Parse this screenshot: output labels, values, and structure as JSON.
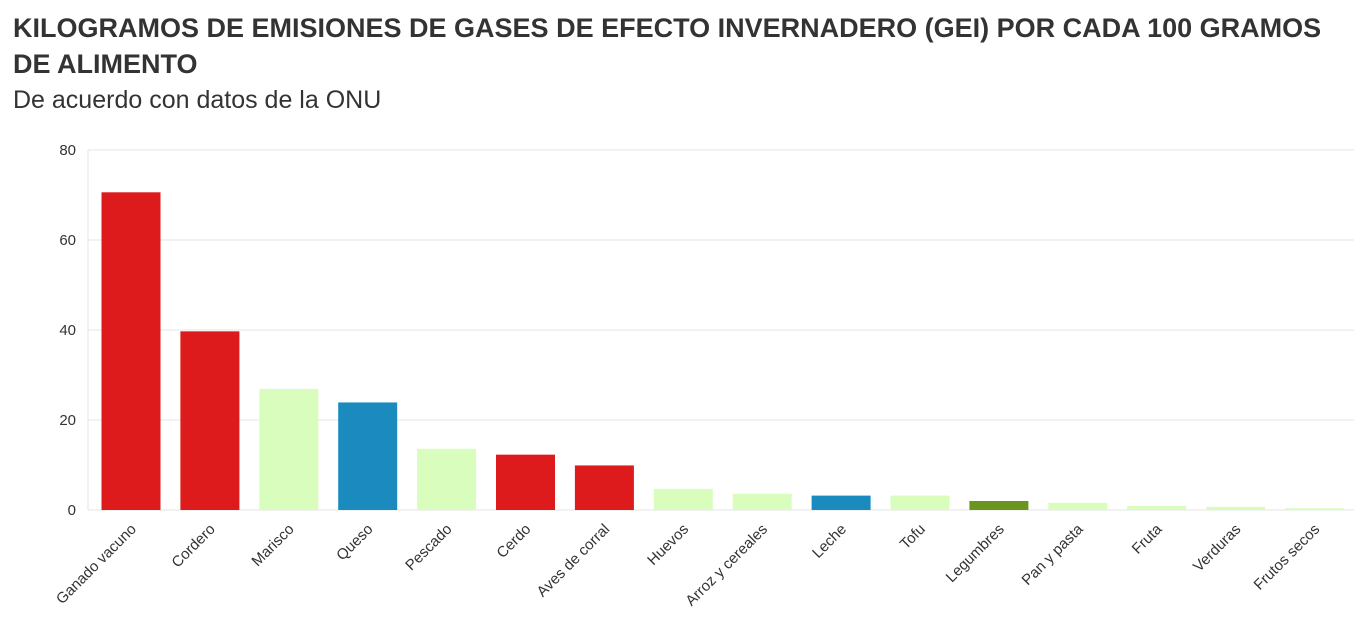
{
  "chart_data": {
    "type": "bar",
    "title": "KILOGRAMOS DE EMISIONES DE GASES DE EFECTO INVERNADERO (GEI) POR CADA 100 GRAMOS DE ALIMENTO",
    "subtitle": "De acuerdo con datos de la ONU",
    "xlabel": "",
    "ylabel": "",
    "ylim": [
      0,
      80
    ],
    "yticks": [
      0,
      20,
      40,
      60,
      80
    ],
    "grid": true,
    "categories": [
      "Ganado vacuno",
      "Cordero",
      "Marisco",
      "Queso",
      "Pescado",
      "Cerdo",
      "Aves de corral",
      "Huevos",
      "Arroz y cereales",
      "Leche",
      "Tofu",
      "Legumbres",
      "Pan y pasta",
      "Fruta",
      "Verduras",
      "Frutos secos"
    ],
    "values": [
      70.6,
      39.7,
      26.9,
      23.9,
      13.6,
      12.3,
      9.9,
      4.7,
      3.6,
      3.2,
      3.2,
      2.0,
      1.6,
      0.9,
      0.7,
      0.4
    ],
    "colors": [
      "#dd1a1c",
      "#dd1a1c",
      "#d9fdbd",
      "#1b8abe",
      "#d9fdbd",
      "#dd1a1c",
      "#dd1a1c",
      "#d9fdbd",
      "#d9fdbd",
      "#1b8abe",
      "#d9fdbd",
      "#6a961f",
      "#d9fdbd",
      "#d9fdbd",
      "#d9fdbd",
      "#d9fdbd"
    ]
  }
}
